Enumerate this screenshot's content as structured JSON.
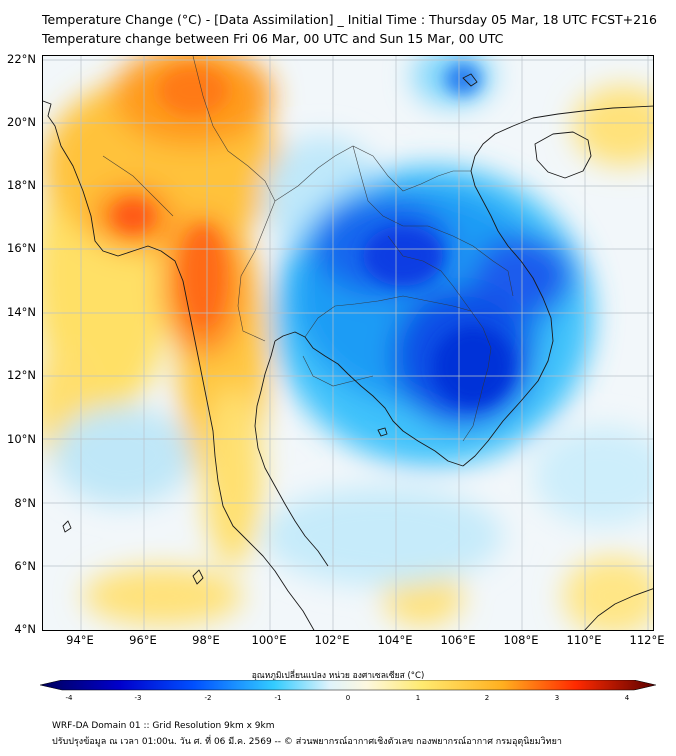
{
  "header": {
    "title_line1": "Temperature Change (°C) - [Data Assimilation] _ Initial Time : Thursday 05 Mar, 18 UTC FCST+216",
    "title_line2": "Temperature change between Fri 06 Mar, 00 UTC and Sun 15 Mar, 00 UTC"
  },
  "map": {
    "lat_labels": [
      "22°N",
      "20°N",
      "18°N",
      "16°N",
      "14°N",
      "12°N",
      "10°N",
      "8°N",
      "6°N",
      "4°N"
    ],
    "lon_labels": [
      "94°E",
      "96°E",
      "98°E",
      "100°E",
      "102°E",
      "104°E",
      "106°E",
      "108°E",
      "110°E",
      "112°E"
    ],
    "extent": {
      "lon_min": 93.0,
      "lon_max": 112.3,
      "lat_min": 4.0,
      "lat_max": 22.2
    }
  },
  "colorbar": {
    "title": "อุณหภูมิเปลี่ยนแปลง หน่วย องศาเซลเซียส (°C)",
    "range": [
      -4,
      4
    ],
    "tick_labels": [
      "-4",
      "-3",
      "-2",
      "-1",
      "0",
      "1",
      "2",
      "3",
      "4"
    ]
  },
  "footer": {
    "line1": "WRF-DA Domain 01 :: Grid Resolution 9km x 9km",
    "line2": "ปรับปรุงข้อมูล ณ เวลา 01:00น. วัน ศ. ที่ 06 มี.ค. 2569 -- © ส่วนพยากรณ์อากาศเชิงตัวเลข กองพยากรณ์อากาศ กรมอุตุนิยมวิทยา"
  },
  "colors": {
    "background": "#ffffff",
    "cold_extreme": "#00005a",
    "cold": "#0033ee",
    "cool": "#33ccff",
    "neutral": "#f3f8fb",
    "warm": "#ffdc4a",
    "hot": "#ff6600",
    "hot_extreme": "#5a0000"
  }
}
